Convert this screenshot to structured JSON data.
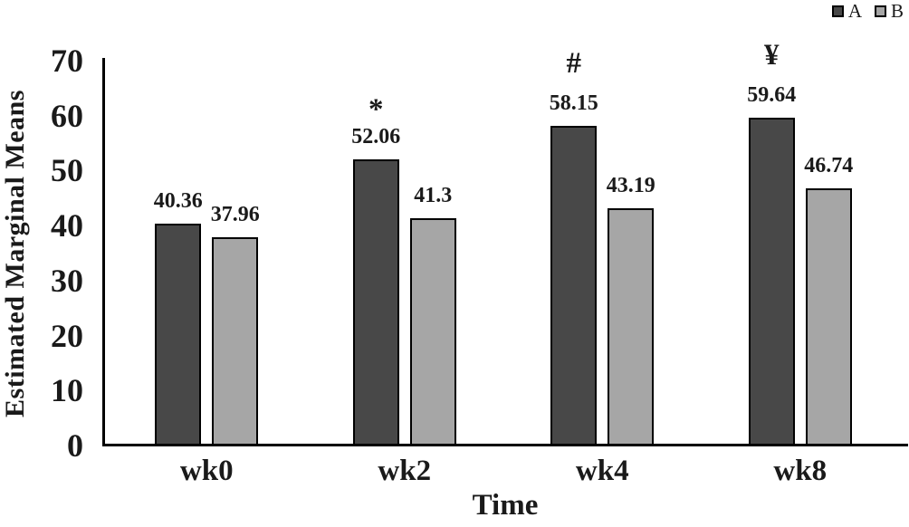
{
  "chart_data": {
    "type": "bar",
    "title": "",
    "xlabel": "Time",
    "ylabel": "Estimated Marginal Means",
    "categories": [
      "wk0",
      "wk2",
      "wk4",
      "wk8"
    ],
    "series": [
      {
        "name": "A",
        "color": "#484848",
        "values": [
          40.36,
          52.06,
          58.15,
          59.64
        ],
        "value_labels": [
          "40.36",
          "52.06",
          "58.15",
          "59.64"
        ],
        "annotations": [
          "",
          "*",
          "#",
          "¥"
        ]
      },
      {
        "name": "B",
        "color": "#a6a6a6",
        "values": [
          37.96,
          41.3,
          43.19,
          46.74
        ],
        "value_labels": [
          "37.96",
          "41.3",
          "43.19",
          "46.74"
        ],
        "annotations": [
          "",
          "",
          "",
          ""
        ]
      }
    ],
    "ylim": [
      0,
      70
    ],
    "yticks": [
      "0",
      "10",
      "20",
      "30",
      "40",
      "50",
      "60",
      "70"
    ],
    "grid": false,
    "legend_position": "top-right",
    "bar_border_color": "#000000",
    "axis_color": "#000000",
    "background_color": "#ffffff"
  }
}
